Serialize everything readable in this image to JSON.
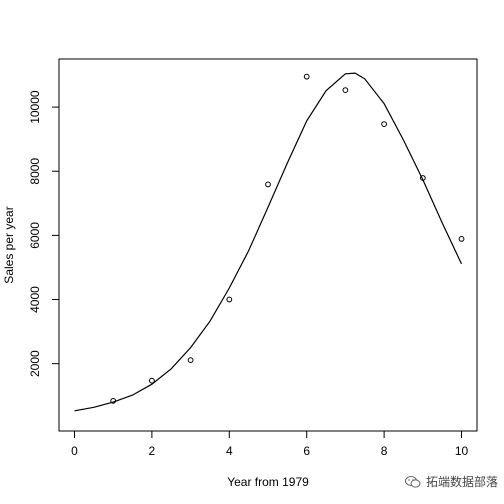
{
  "chart_data": {
    "type": "scatter",
    "xlabel": "Year from 1979",
    "ylabel": "Sales per year",
    "xlim": [
      -0.4,
      10.4
    ],
    "ylim": [
      -100,
      11500
    ],
    "x_ticks": [
      0,
      2,
      4,
      6,
      8,
      10
    ],
    "y_ticks": [
      2000,
      4000,
      6000,
      8000,
      10000
    ],
    "grid": false,
    "legend": "none",
    "points": [
      {
        "x": 1,
        "y": 840
      },
      {
        "x": 2,
        "y": 1470
      },
      {
        "x": 3,
        "y": 2110
      },
      {
        "x": 4,
        "y": 4000
      },
      {
        "x": 5,
        "y": 7590
      },
      {
        "x": 6,
        "y": 10950
      },
      {
        "x": 7,
        "y": 10530
      },
      {
        "x": 8,
        "y": 9470
      },
      {
        "x": 9,
        "y": 7790
      },
      {
        "x": 10,
        "y": 5890
      }
    ],
    "fitted_curve": [
      {
        "x": 0.0,
        "y": 530
      },
      {
        "x": 0.5,
        "y": 640
      },
      {
        "x": 1.0,
        "y": 800
      },
      {
        "x": 1.5,
        "y": 1020
      },
      {
        "x": 2.0,
        "y": 1360
      },
      {
        "x": 2.5,
        "y": 1840
      },
      {
        "x": 3.0,
        "y": 2500
      },
      {
        "x": 3.5,
        "y": 3320
      },
      {
        "x": 4.0,
        "y": 4360
      },
      {
        "x": 4.5,
        "y": 5520
      },
      {
        "x": 5.0,
        "y": 6880
      },
      {
        "x": 5.5,
        "y": 8260
      },
      {
        "x": 6.0,
        "y": 9570
      },
      {
        "x": 6.5,
        "y": 10510
      },
      {
        "x": 7.0,
        "y": 11040
      },
      {
        "x": 7.25,
        "y": 11060
      },
      {
        "x": 7.5,
        "y": 10880
      },
      {
        "x": 8.0,
        "y": 10110
      },
      {
        "x": 8.5,
        "y": 8970
      },
      {
        "x": 9.0,
        "y": 7740
      },
      {
        "x": 9.5,
        "y": 6390
      },
      {
        "x": 10.0,
        "y": 5110
      }
    ],
    "colors": {
      "points": "#000000",
      "line": "#000000",
      "axes": "#000000"
    }
  },
  "watermark": {
    "text": "拓端数据部落",
    "icon": "wechat-icon"
  }
}
